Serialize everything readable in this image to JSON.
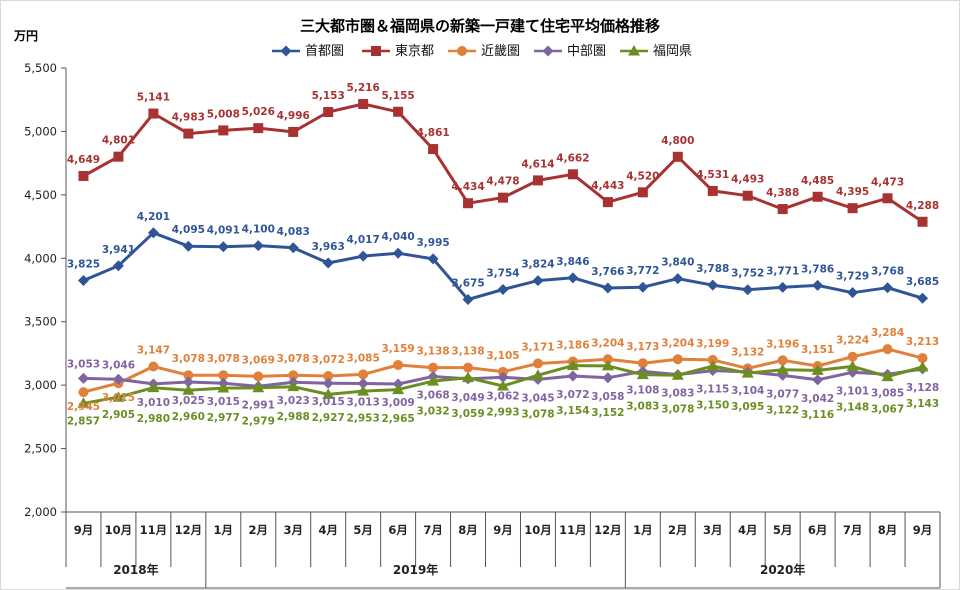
{
  "chart_data": {
    "type": "line",
    "title": "三大都市圏＆福岡県の新築一戸建て住宅平均価格推移",
    "ylabel": "万円",
    "ylim": [
      2000,
      5500
    ],
    "yticks": [
      "2,000",
      "2,500",
      "3,000",
      "3,500",
      "4,000",
      "4,500",
      "5,000",
      "5,500"
    ],
    "categories": [
      "9月",
      "10月",
      "11月",
      "12月",
      "1月",
      "2月",
      "3月",
      "4月",
      "5月",
      "6月",
      "7月",
      "8月",
      "9月",
      "10月",
      "11月",
      "12月",
      "1月",
      "2月",
      "3月",
      "4月",
      "5月",
      "6月",
      "7月",
      "8月",
      "9月"
    ],
    "years": [
      {
        "label": "2018年",
        "start": 0,
        "end": 3
      },
      {
        "label": "2019年",
        "start": 4,
        "end": 15
      },
      {
        "label": "2020年",
        "start": 16,
        "end": 24
      }
    ],
    "legend_position": "top",
    "grid": false,
    "series": [
      {
        "name": "首都圏",
        "color": "#2f5597",
        "marker": "diamond",
        "values": [
          3825,
          3941,
          4201,
          4095,
          4091,
          4100,
          4083,
          3963,
          4017,
          4040,
          3995,
          3675,
          3754,
          3824,
          3846,
          3766,
          3772,
          3840,
          3788,
          3752,
          3771,
          3786,
          3729,
          3768,
          3685
        ],
        "labels": [
          "3,825",
          "3,941",
          "4,201",
          "4,095",
          "4,091",
          "4,100",
          "4,083",
          "3,963",
          "4,017",
          "4,040",
          "3,995",
          "3,675",
          "3,754",
          "3,824",
          "3,846",
          "3,766",
          "3,772",
          "3,840",
          "3,788",
          "3,752",
          "3,771",
          "3,786",
          "3,729",
          "3,768",
          "3,685"
        ]
      },
      {
        "name": "東京都",
        "color": "#a83232",
        "marker": "square",
        "values": [
          4649,
          4801,
          5141,
          4983,
          5008,
          5026,
          4996,
          5153,
          5216,
          5155,
          4861,
          4434,
          4478,
          4614,
          4662,
          4443,
          4520,
          4800,
          4531,
          4493,
          4388,
          4485,
          4395,
          4473,
          4288
        ],
        "labels": [
          "4,649",
          "4,801",
          "5,141",
          "4,983",
          "5,008",
          "5,026",
          "4,996",
          "5,153",
          "5,216",
          "5,155",
          "4,861",
          "4,434",
          "4,478",
          "4,614",
          "4,662",
          "4,443",
          "4,520",
          "4,800",
          "4,531",
          "4,493",
          "4,388",
          "4,485",
          "4,395",
          "4,473",
          "4,288"
        ]
      },
      {
        "name": "近畿圏",
        "color": "#e0803a",
        "marker": "circle",
        "values": [
          2945,
          3015,
          3147,
          3078,
          3078,
          3069,
          3078,
          3072,
          3085,
          3159,
          3138,
          3138,
          3105,
          3171,
          3186,
          3204,
          3173,
          3204,
          3199,
          3132,
          3196,
          3151,
          3224,
          3284,
          3213
        ],
        "labels": [
          "2,945",
          "3,015",
          "3,147",
          "3,078",
          "3,078",
          "3,069",
          "3,078",
          "3,072",
          "3,085",
          "3,159",
          "3,138",
          "3,138",
          "3,105",
          "3,171",
          "3,186",
          "3,204",
          "3,173",
          "3,204",
          "3,199",
          "3,132",
          "3,196",
          "3,151",
          "3,224",
          "3,284",
          "3,213"
        ]
      },
      {
        "name": "中部圏",
        "color": "#8064a2",
        "marker": "diamond",
        "values": [
          3053,
          3046,
          3010,
          3025,
          3015,
          2991,
          3023,
          3015,
          3013,
          3009,
          3068,
          3049,
          3062,
          3045,
          3072,
          3058,
          3108,
          3083,
          3115,
          3104,
          3077,
          3042,
          3101,
          3085,
          3128
        ],
        "labels": [
          "3,053",
          "3,046",
          "3,010",
          "3,025",
          "3,015",
          "2,991",
          "3,023",
          "3,015",
          "3,013",
          "3,009",
          "3,068",
          "3,049",
          "3,062",
          "3,045",
          "3,072",
          "3,058",
          "3,108",
          "3,083",
          "3,115",
          "3,104",
          "3,077",
          "3,042",
          "3,101",
          "3,085",
          "3,128"
        ]
      },
      {
        "name": "福岡県",
        "color": "#6b8e23",
        "marker": "triangle",
        "values": [
          2857,
          2905,
          2980,
          2960,
          2977,
          2979,
          2988,
          2927,
          2953,
          2965,
          3032,
          3059,
          2993,
          3078,
          3154,
          3152,
          3083,
          3078,
          3150,
          3095,
          3122,
          3116,
          3148,
          3067,
          3143
        ],
        "labels": [
          "2,857",
          "2,905",
          "2,980",
          "2,960",
          "2,977",
          "2,979",
          "2,988",
          "2,927",
          "2,953",
          "2,965",
          "3,032",
          "3,059",
          "2,993",
          "3,078",
          "3,154",
          "3,152",
          "3,083",
          "3,078",
          "3,150",
          "3,095",
          "3,122",
          "3,116",
          "3,148",
          "3,067",
          "3,143"
        ]
      }
    ]
  }
}
